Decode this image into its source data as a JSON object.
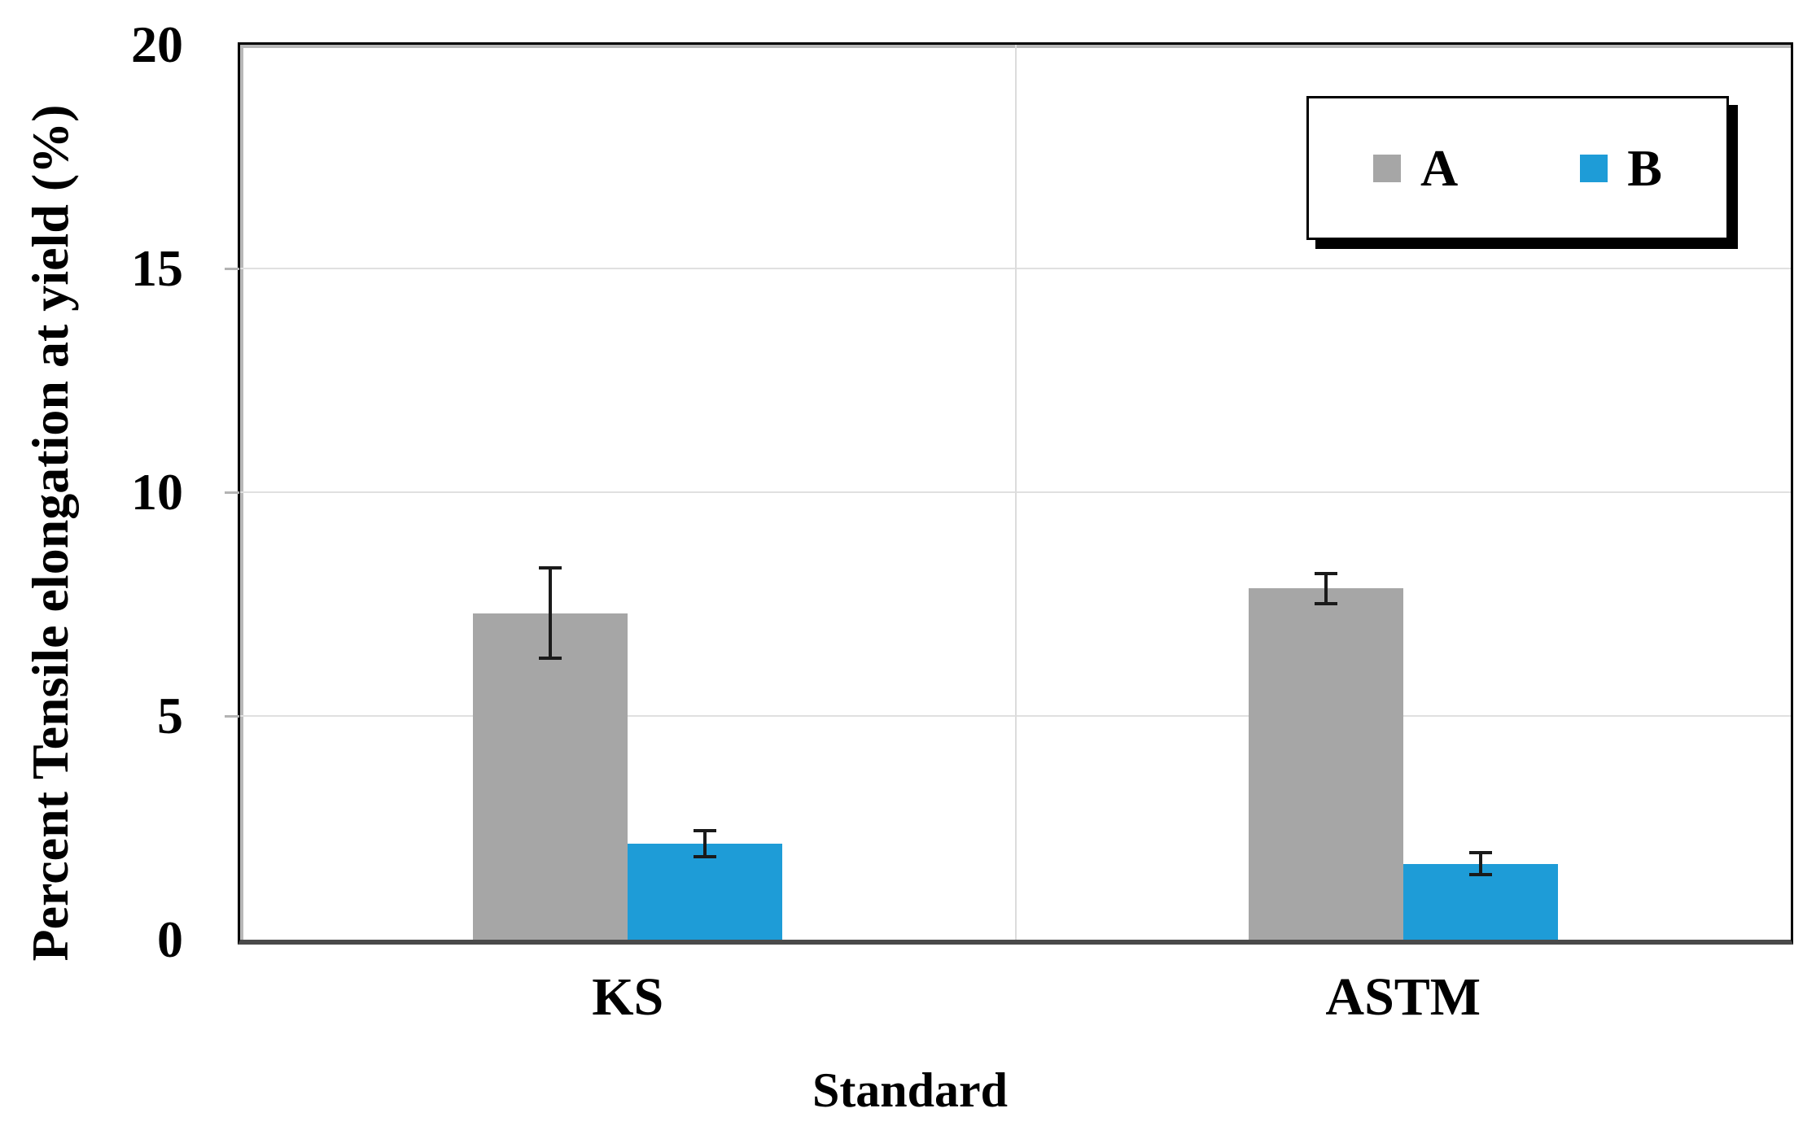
{
  "chart_data": {
    "type": "bar",
    "title": "",
    "xlabel": "Standard",
    "ylabel": "Percent Tensile elongation at yield (%)",
    "categories": [
      "KS",
      "ASTM"
    ],
    "series": [
      {
        "name": "A",
        "color": "#A6A6A6",
        "values": [
          7.3,
          7.85
        ],
        "errors": [
          1.05,
          0.37
        ]
      },
      {
        "name": "B",
        "color": "#1E9CD7",
        "values": [
          2.15,
          1.7
        ],
        "errors": [
          0.33,
          0.28
        ]
      }
    ],
    "ylim": [
      0,
      20
    ],
    "yticks": [
      "0",
      "5",
      "10",
      "15",
      "20"
    ],
    "grid": "horizontal major gridlines + vertical category divider",
    "legend_position": "top-right-inside",
    "error_bars": "symmetric, capped, black"
  },
  "legend": {
    "items": [
      {
        "label": "A",
        "color": "#A6A6A6"
      },
      {
        "label": "B",
        "color": "#1E9CD7"
      }
    ]
  },
  "colors": {
    "bar_a": "#A6A6A6",
    "bar_b": "#1E9CD7",
    "gridline": "#E0E0E0",
    "axis_frame": "#000000",
    "x_axis_line": "#4A4A4A",
    "error_bar": "#1A1A1A",
    "background": "#FFFFFF"
  }
}
